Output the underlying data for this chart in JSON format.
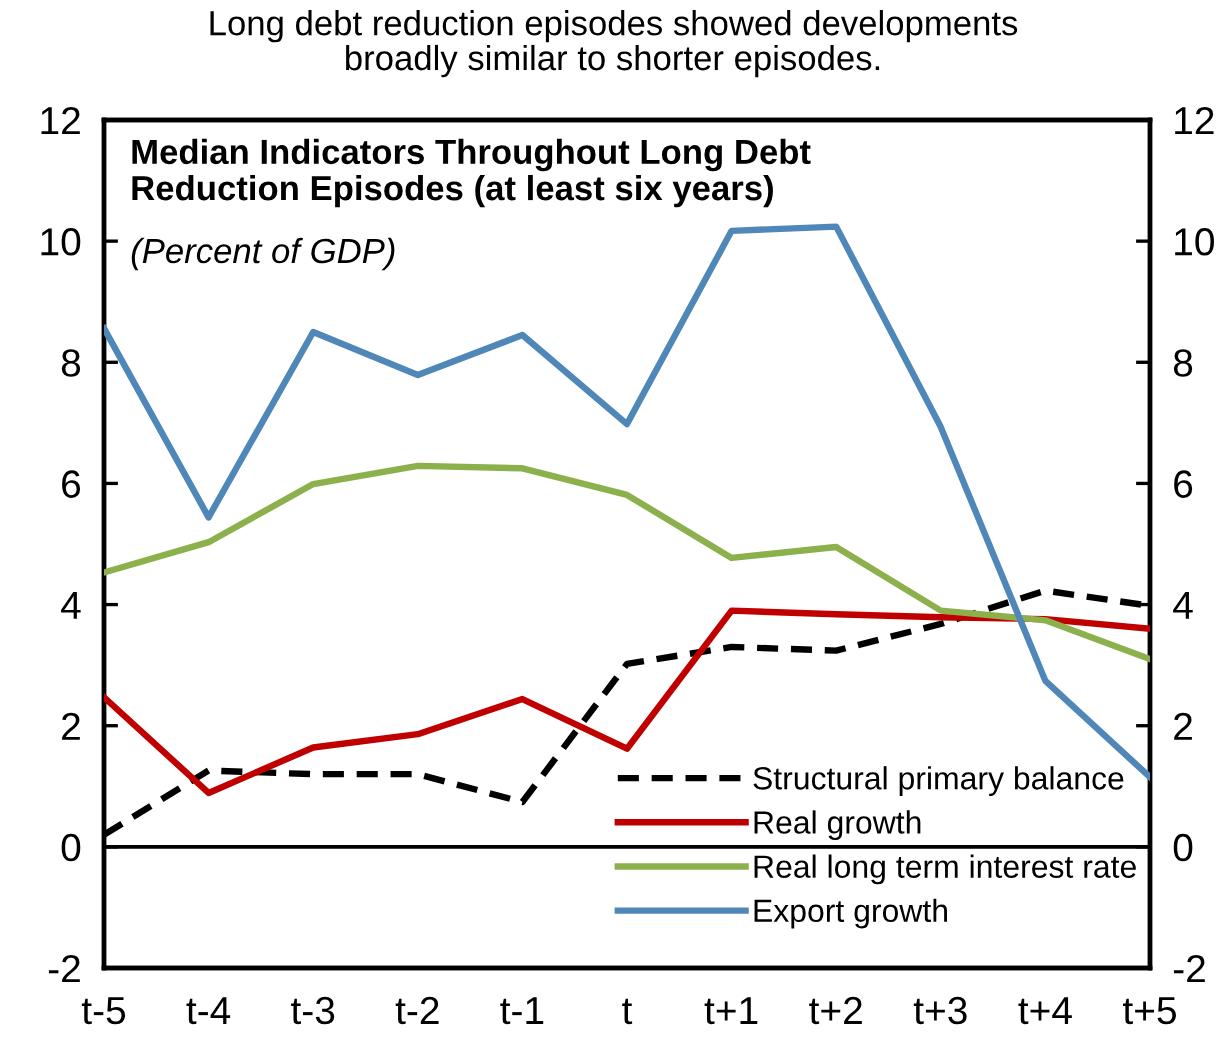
{
  "chart_data": {
    "type": "line",
    "title": "Long debt reduction episodes showed developments\nbroadly similar to shorter episodes.",
    "subtitle": "Median Indicators Throughout Long Debt\nReduction Episodes (at least six years)",
    "annotations": [
      "(Percent of GDP)"
    ],
    "categories": [
      "t-5",
      "t-4",
      "t-3",
      "t-2",
      "t-1",
      "t",
      "t+1",
      "t+2",
      "t+3",
      "t+4",
      "t+5"
    ],
    "series": [
      {
        "name": "Structural primary balance",
        "color": "#000000",
        "line_style": "dashed",
        "values": [
          0.2,
          1.26,
          1.2,
          1.2,
          0.74,
          3.02,
          3.3,
          3.24,
          3.68,
          4.23,
          3.98
        ]
      },
      {
        "name": "Real growth",
        "color": "#c00000",
        "values": [
          2.47,
          0.89,
          1.64,
          1.86,
          2.44,
          1.62,
          3.9,
          3.84,
          3.79,
          3.76,
          3.6
        ]
      },
      {
        "name": "Real long term interest rate",
        "color": "#8cb04b",
        "values": [
          4.53,
          5.03,
          5.99,
          6.29,
          6.25,
          5.81,
          4.77,
          4.95,
          3.9,
          3.74,
          3.1
        ]
      },
      {
        "name": "Export growth",
        "color": "#4f87b8",
        "values": [
          8.56,
          5.44,
          8.5,
          7.79,
          8.45,
          6.98,
          10.17,
          10.24,
          6.93,
          2.74,
          1.15
        ]
      }
    ],
    "ylim": [
      -2,
      12
    ],
    "yticks": [
      -2,
      0,
      2,
      4,
      6,
      8,
      10,
      12
    ],
    "y2lim": [
      -2,
      12
    ],
    "y2ticks": [
      -2,
      0,
      2,
      4,
      6,
      8,
      10,
      12
    ],
    "ref_lines": [
      {
        "axis": "y",
        "value": 0,
        "color": "#000000"
      }
    ],
    "legend": "bottom right",
    "marker": "none",
    "line_style": "solid"
  }
}
